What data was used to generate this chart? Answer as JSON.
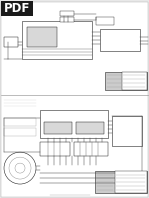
{
  "bg_color": "#e8e8e8",
  "pdf_badge_color": "#1a1a1a",
  "pdf_text_color": "#ffffff",
  "pdf_text": "PDF",
  "page_bg": "#ffffff",
  "line_color": "#444444",
  "box_color": "#222222",
  "figsize": [
    1.49,
    1.98
  ],
  "dpi": 100
}
